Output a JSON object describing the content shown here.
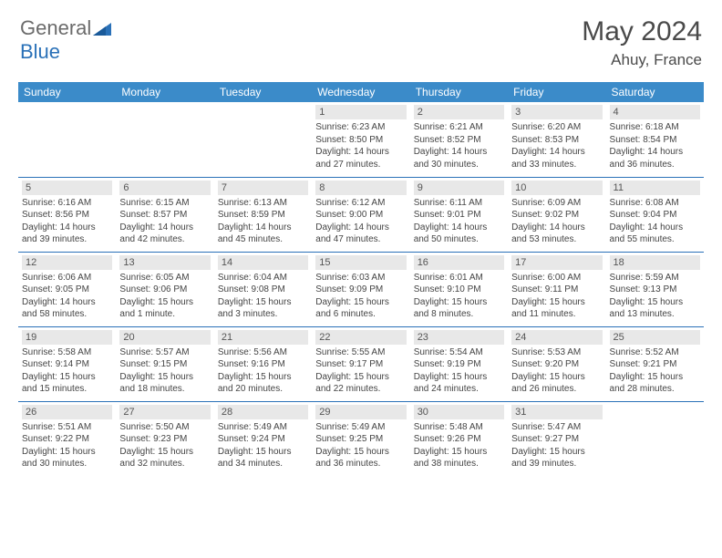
{
  "brand": {
    "part1": "General",
    "part2": "Blue"
  },
  "title": "May 2024",
  "location": "Ahuy, France",
  "colors": {
    "header_bg": "#3b8bc9",
    "border": "#2a71b8",
    "daynum_bg": "#e8e8e8",
    "text": "#333333",
    "logo_gray": "#6b6b6b",
    "logo_blue": "#2a71b8"
  },
  "day_names": [
    "Sunday",
    "Monday",
    "Tuesday",
    "Wednesday",
    "Thursday",
    "Friday",
    "Saturday"
  ],
  "weeks": [
    [
      null,
      null,
      null,
      {
        "n": "1",
        "sr": "Sunrise: 6:23 AM",
        "ss": "Sunset: 8:50 PM",
        "d1": "Daylight: 14 hours",
        "d2": "and 27 minutes."
      },
      {
        "n": "2",
        "sr": "Sunrise: 6:21 AM",
        "ss": "Sunset: 8:52 PM",
        "d1": "Daylight: 14 hours",
        "d2": "and 30 minutes."
      },
      {
        "n": "3",
        "sr": "Sunrise: 6:20 AM",
        "ss": "Sunset: 8:53 PM",
        "d1": "Daylight: 14 hours",
        "d2": "and 33 minutes."
      },
      {
        "n": "4",
        "sr": "Sunrise: 6:18 AM",
        "ss": "Sunset: 8:54 PM",
        "d1": "Daylight: 14 hours",
        "d2": "and 36 minutes."
      }
    ],
    [
      {
        "n": "5",
        "sr": "Sunrise: 6:16 AM",
        "ss": "Sunset: 8:56 PM",
        "d1": "Daylight: 14 hours",
        "d2": "and 39 minutes."
      },
      {
        "n": "6",
        "sr": "Sunrise: 6:15 AM",
        "ss": "Sunset: 8:57 PM",
        "d1": "Daylight: 14 hours",
        "d2": "and 42 minutes."
      },
      {
        "n": "7",
        "sr": "Sunrise: 6:13 AM",
        "ss": "Sunset: 8:59 PM",
        "d1": "Daylight: 14 hours",
        "d2": "and 45 minutes."
      },
      {
        "n": "8",
        "sr": "Sunrise: 6:12 AM",
        "ss": "Sunset: 9:00 PM",
        "d1": "Daylight: 14 hours",
        "d2": "and 47 minutes."
      },
      {
        "n": "9",
        "sr": "Sunrise: 6:11 AM",
        "ss": "Sunset: 9:01 PM",
        "d1": "Daylight: 14 hours",
        "d2": "and 50 minutes."
      },
      {
        "n": "10",
        "sr": "Sunrise: 6:09 AM",
        "ss": "Sunset: 9:02 PM",
        "d1": "Daylight: 14 hours",
        "d2": "and 53 minutes."
      },
      {
        "n": "11",
        "sr": "Sunrise: 6:08 AM",
        "ss": "Sunset: 9:04 PM",
        "d1": "Daylight: 14 hours",
        "d2": "and 55 minutes."
      }
    ],
    [
      {
        "n": "12",
        "sr": "Sunrise: 6:06 AM",
        "ss": "Sunset: 9:05 PM",
        "d1": "Daylight: 14 hours",
        "d2": "and 58 minutes."
      },
      {
        "n": "13",
        "sr": "Sunrise: 6:05 AM",
        "ss": "Sunset: 9:06 PM",
        "d1": "Daylight: 15 hours",
        "d2": "and 1 minute."
      },
      {
        "n": "14",
        "sr": "Sunrise: 6:04 AM",
        "ss": "Sunset: 9:08 PM",
        "d1": "Daylight: 15 hours",
        "d2": "and 3 minutes."
      },
      {
        "n": "15",
        "sr": "Sunrise: 6:03 AM",
        "ss": "Sunset: 9:09 PM",
        "d1": "Daylight: 15 hours",
        "d2": "and 6 minutes."
      },
      {
        "n": "16",
        "sr": "Sunrise: 6:01 AM",
        "ss": "Sunset: 9:10 PM",
        "d1": "Daylight: 15 hours",
        "d2": "and 8 minutes."
      },
      {
        "n": "17",
        "sr": "Sunrise: 6:00 AM",
        "ss": "Sunset: 9:11 PM",
        "d1": "Daylight: 15 hours",
        "d2": "and 11 minutes."
      },
      {
        "n": "18",
        "sr": "Sunrise: 5:59 AM",
        "ss": "Sunset: 9:13 PM",
        "d1": "Daylight: 15 hours",
        "d2": "and 13 minutes."
      }
    ],
    [
      {
        "n": "19",
        "sr": "Sunrise: 5:58 AM",
        "ss": "Sunset: 9:14 PM",
        "d1": "Daylight: 15 hours",
        "d2": "and 15 minutes."
      },
      {
        "n": "20",
        "sr": "Sunrise: 5:57 AM",
        "ss": "Sunset: 9:15 PM",
        "d1": "Daylight: 15 hours",
        "d2": "and 18 minutes."
      },
      {
        "n": "21",
        "sr": "Sunrise: 5:56 AM",
        "ss": "Sunset: 9:16 PM",
        "d1": "Daylight: 15 hours",
        "d2": "and 20 minutes."
      },
      {
        "n": "22",
        "sr": "Sunrise: 5:55 AM",
        "ss": "Sunset: 9:17 PM",
        "d1": "Daylight: 15 hours",
        "d2": "and 22 minutes."
      },
      {
        "n": "23",
        "sr": "Sunrise: 5:54 AM",
        "ss": "Sunset: 9:19 PM",
        "d1": "Daylight: 15 hours",
        "d2": "and 24 minutes."
      },
      {
        "n": "24",
        "sr": "Sunrise: 5:53 AM",
        "ss": "Sunset: 9:20 PM",
        "d1": "Daylight: 15 hours",
        "d2": "and 26 minutes."
      },
      {
        "n": "25",
        "sr": "Sunrise: 5:52 AM",
        "ss": "Sunset: 9:21 PM",
        "d1": "Daylight: 15 hours",
        "d2": "and 28 minutes."
      }
    ],
    [
      {
        "n": "26",
        "sr": "Sunrise: 5:51 AM",
        "ss": "Sunset: 9:22 PM",
        "d1": "Daylight: 15 hours",
        "d2": "and 30 minutes."
      },
      {
        "n": "27",
        "sr": "Sunrise: 5:50 AM",
        "ss": "Sunset: 9:23 PM",
        "d1": "Daylight: 15 hours",
        "d2": "and 32 minutes."
      },
      {
        "n": "28",
        "sr": "Sunrise: 5:49 AM",
        "ss": "Sunset: 9:24 PM",
        "d1": "Daylight: 15 hours",
        "d2": "and 34 minutes."
      },
      {
        "n": "29",
        "sr": "Sunrise: 5:49 AM",
        "ss": "Sunset: 9:25 PM",
        "d1": "Daylight: 15 hours",
        "d2": "and 36 minutes."
      },
      {
        "n": "30",
        "sr": "Sunrise: 5:48 AM",
        "ss": "Sunset: 9:26 PM",
        "d1": "Daylight: 15 hours",
        "d2": "and 38 minutes."
      },
      {
        "n": "31",
        "sr": "Sunrise: 5:47 AM",
        "ss": "Sunset: 9:27 PM",
        "d1": "Daylight: 15 hours",
        "d2": "and 39 minutes."
      },
      null
    ]
  ]
}
